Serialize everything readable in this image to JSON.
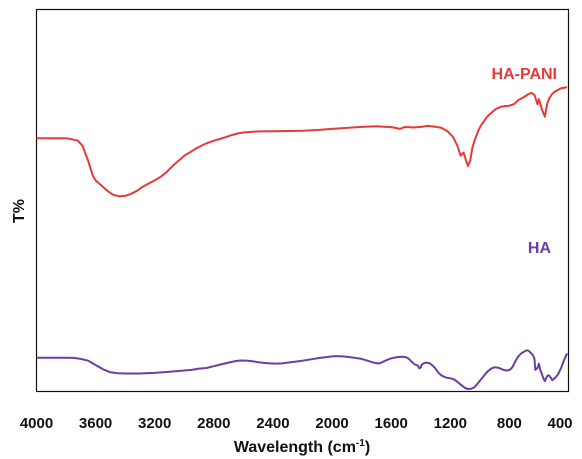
{
  "chart_data": {
    "type": "line",
    "title": "",
    "xlabel_main": "Wavelength (cm",
    "xlabel_sup": "-1",
    "xlabel_tail": ")",
    "ylabel": "T%",
    "xlim": [
      4000,
      400
    ],
    "x_reversed": true,
    "y_ticks_shown": false,
    "grid": false,
    "legend": "inline labels near top-right of each curve",
    "x_ticks": [
      "4000",
      "3600",
      "3200",
      "2800",
      "2400",
      "2000",
      "1600",
      "1200",
      "800",
      "400"
    ],
    "x_tick_values": [
      4000,
      3600,
      3200,
      2800,
      2400,
      2000,
      1600,
      1200,
      800,
      400
    ],
    "ylim": [
      0,
      100
    ],
    "series": [
      {
        "name": "HA-PANI",
        "color": "#e8393a",
        "x": [
          4000,
          3900,
          3800,
          3760,
          3720,
          3690,
          3650,
          3620,
          3600,
          3560,
          3520,
          3480,
          3440,
          3400,
          3360,
          3320,
          3280,
          3240,
          3200,
          3160,
          3120,
          3080,
          3040,
          3000,
          2960,
          2920,
          2880,
          2850,
          2800,
          2760,
          2720,
          2680,
          2640,
          2600,
          2560,
          2520,
          2480,
          2400,
          2300,
          2200,
          2100,
          2000,
          1900,
          1800,
          1700,
          1650,
          1600,
          1570,
          1540,
          1510,
          1480,
          1450,
          1400,
          1350,
          1300,
          1260,
          1220,
          1180,
          1150,
          1130,
          1110,
          1090,
          1080,
          1065,
          1050,
          1030,
          1010,
          990,
          970,
          950,
          920,
          890,
          860,
          830,
          800,
          770,
          740,
          700,
          670,
          650,
          630,
          610,
          600,
          580,
          560,
          545,
          530,
          510,
          490,
          470,
          450,
          430,
          410
        ],
        "y": [
          63,
          63,
          63,
          62.5,
          61.8,
          59.5,
          52,
          45,
          42.5,
          40,
          37.5,
          35.5,
          34.8,
          35,
          36,
          37.5,
          39.5,
          41,
          42.5,
          44.2,
          46.5,
          49.5,
          52,
          54.5,
          56.2,
          58,
          59.5,
          60.5,
          61.8,
          62.6,
          63.5,
          64.5,
          65.3,
          65.8,
          66,
          66.2,
          66.3,
          66.4,
          66.5,
          66.6,
          67,
          67.5,
          68,
          68.5,
          68.8,
          68.6,
          68.4,
          68,
          67.5,
          68.4,
          68.4,
          68.2,
          68.5,
          69,
          68.6,
          68,
          66.5,
          63.5,
          59,
          54.5,
          56,
          51.5,
          49.5,
          52,
          58.5,
          63,
          66.8,
          69.5,
          71.5,
          73.5,
          75.5,
          77.3,
          78.2,
          78.6,
          78.8,
          79.5,
          81.5,
          83,
          84.5,
          85,
          84,
          79.5,
          82,
          77,
          73.5,
          79.5,
          82.5,
          84.5,
          85.8,
          86.5,
          87.3,
          87.5,
          87.8
        ]
      },
      {
        "name": "HA",
        "color": "#6b3fa0",
        "x": [
          4000,
          3900,
          3800,
          3750,
          3700,
          3650,
          3600,
          3550,
          3500,
          3450,
          3400,
          3300,
          3200,
          3100,
          3000,
          2950,
          2900,
          2850,
          2800,
          2750,
          2700,
          2650,
          2620,
          2580,
          2540,
          2500,
          2460,
          2420,
          2380,
          2340,
          2300,
          2200,
          2100,
          2000,
          1960,
          1900,
          1850,
          1800,
          1760,
          1720,
          1690,
          1680,
          1660,
          1640,
          1600,
          1560,
          1530,
          1500,
          1480,
          1460,
          1440,
          1420,
          1410,
          1400,
          1395,
          1380,
          1360,
          1340,
          1320,
          1300,
          1280,
          1260,
          1240,
          1220,
          1200,
          1180,
          1160,
          1140,
          1120,
          1100,
          1080,
          1060,
          1040,
          1020,
          1000,
          980,
          960,
          940,
          920,
          900,
          880,
          860,
          840,
          820,
          800,
          780,
          760,
          740,
          720,
          700,
          690,
          680,
          670,
          660,
          640,
          630,
          625,
          610,
          600,
          590,
          580,
          570,
          560,
          550,
          540,
          530,
          520,
          510,
          490,
          470,
          450,
          430,
          410
        ],
        "y": [
          26.5,
          26.5,
          26.5,
          26.3,
          25.5,
          24,
          20.5,
          17,
          14.5,
          13.8,
          13.5,
          13.5,
          14,
          15,
          16,
          16.5,
          17.5,
          18,
          19.5,
          21,
          22.5,
          23.8,
          24.2,
          24.1,
          23.6,
          22.8,
          22.2,
          21.8,
          21.6,
          21.8,
          22.5,
          24,
          26,
          27.5,
          27.8,
          27.3,
          26.5,
          25.5,
          24,
          22.5,
          21.8,
          21.8,
          22.8,
          24,
          26,
          27,
          27.3,
          27,
          25.5,
          23,
          21,
          20,
          17.8,
          18.4,
          20.4,
          22,
          22.5,
          22,
          20.2,
          17.5,
          14,
          12,
          10.7,
          10,
          9.6,
          9,
          7.5,
          5.5,
          3.5,
          1.6,
          0.8,
          1,
          2,
          4.5,
          7.5,
          10.5,
          13.5,
          16,
          17.8,
          18.6,
          18.4,
          17.5,
          16.5,
          16,
          16.3,
          18.5,
          23.5,
          27.5,
          30,
          31.5,
          32.2,
          32.5,
          32.2,
          31,
          28.5,
          25.5,
          16.5,
          18,
          21.5,
          16.3,
          13,
          9.5,
          7.2,
          10,
          12,
          11.8,
          10,
          8,
          10,
          13,
          18,
          24.5,
          30
        ]
      }
    ]
  }
}
